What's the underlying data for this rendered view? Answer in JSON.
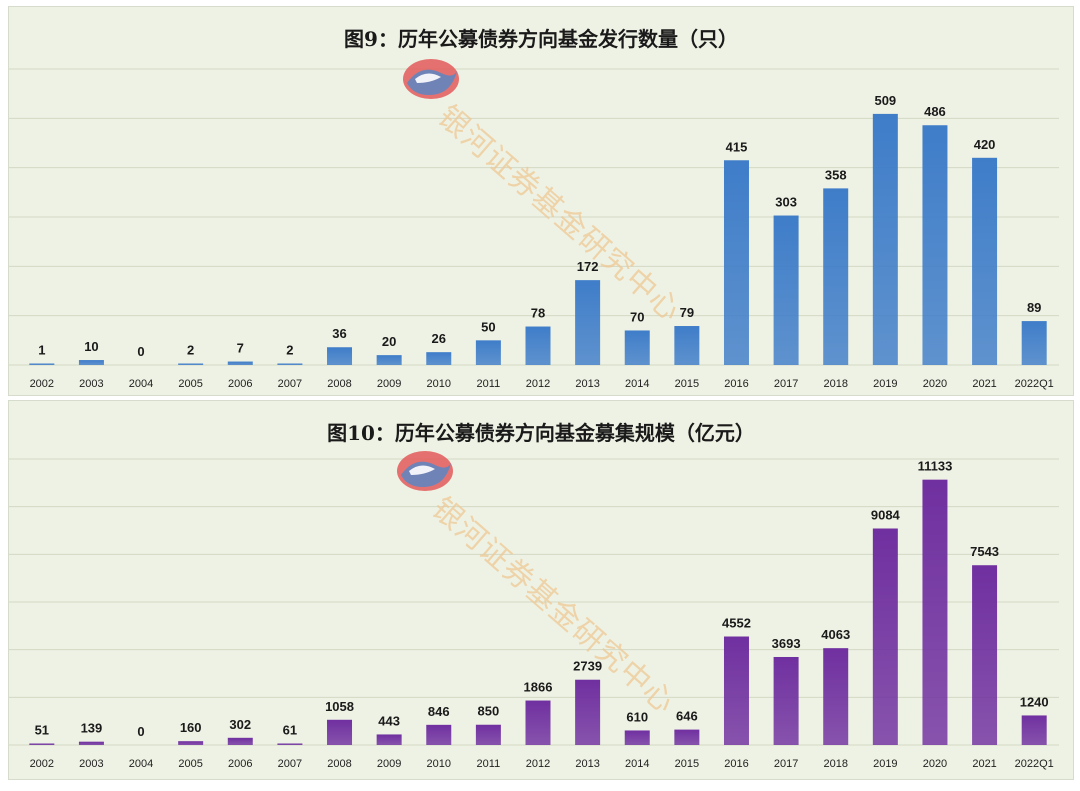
{
  "colors": {
    "panel_background": "#eef2e4",
    "gridline": "#d2d8c4",
    "chart1_bar": "#3f7dc9",
    "chart2_bar": "#7030a0",
    "watermark_text": "#eec896",
    "watermark_logo_red": "#e25a5a",
    "watermark_logo_blue": "#5b86c4"
  },
  "watermark": {
    "text": "银河证券基金研究中心",
    "logo_icon": "galaxy-securities-logo"
  },
  "chart_data": [
    {
      "type": "bar",
      "title": "图9：历年公募债券方向基金发行数量（只）",
      "xlabel": "",
      "ylabel": "",
      "ylim": [
        0,
        600
      ],
      "grid": true,
      "legend": "none",
      "categories": [
        "2002",
        "2003",
        "2004",
        "2005",
        "2006",
        "2007",
        "2008",
        "2009",
        "2010",
        "2011",
        "2012",
        "2013",
        "2014",
        "2015",
        "2016",
        "2017",
        "2018",
        "2019",
        "2020",
        "2021",
        "2022Q1"
      ],
      "values": [
        1,
        10,
        0,
        2,
        7,
        2,
        36,
        20,
        26,
        50,
        78,
        172,
        70,
        79,
        415,
        303,
        358,
        509,
        486,
        420,
        89
      ]
    },
    {
      "type": "bar",
      "title": "图10：历年公募债券方向基金募集规模（亿元）",
      "xlabel": "",
      "ylabel": "",
      "ylim": [
        0,
        12000
      ],
      "grid": true,
      "legend": "none",
      "categories": [
        "2002",
        "2003",
        "2004",
        "2005",
        "2006",
        "2007",
        "2008",
        "2009",
        "2010",
        "2011",
        "2012",
        "2013",
        "2014",
        "2015",
        "2016",
        "2017",
        "2018",
        "2019",
        "2020",
        "2021",
        "2022Q1"
      ],
      "values": [
        51,
        139,
        0,
        160,
        302,
        61,
        1058,
        443,
        846,
        850,
        1866,
        2739,
        610,
        646,
        4552,
        3693,
        4063,
        9084,
        11133,
        7543,
        1240
      ]
    }
  ]
}
